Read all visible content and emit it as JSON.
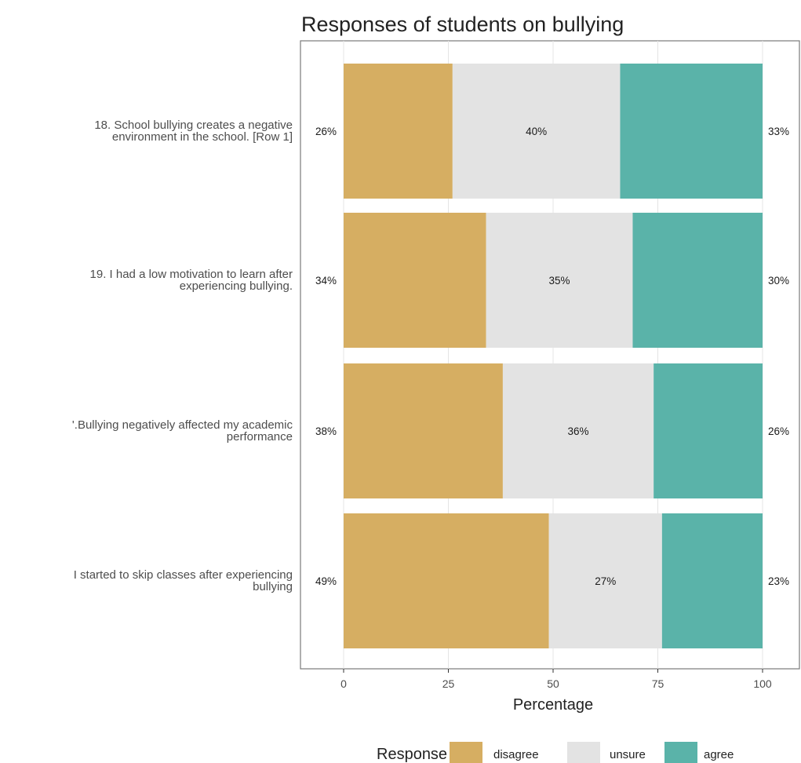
{
  "chart_data": {
    "type": "bar",
    "orientation": "horizontal",
    "stacked": true,
    "title": "Responses of students on bullying",
    "xlabel": "Percentage",
    "ylabel": "",
    "xlim": [
      0,
      100
    ],
    "xticks": [
      "0",
      "25",
      "50",
      "75",
      "100"
    ],
    "grid": true,
    "legend_position": "bottom",
    "legend_title": "Response",
    "categories": [
      [
        "18. School bullying creates a negative",
        "environment in the school. [Row 1]"
      ],
      [
        "19. I had a low motivation to learn after",
        "experiencing bullying."
      ],
      [
        "'.Bullying negatively affected my academic",
        "performance"
      ],
      [
        "I started to skip classes after experiencing",
        "bullying"
      ]
    ],
    "series": [
      {
        "name": "disagree",
        "color": "#d6ae62",
        "values": [
          26,
          34,
          38,
          49
        ]
      },
      {
        "name": "unsure",
        "color": "#e3e3e3",
        "values": [
          40,
          35,
          36,
          27
        ]
      },
      {
        "name": "agree",
        "color": "#5ab3a9",
        "values": [
          33,
          30,
          26,
          23
        ]
      }
    ],
    "labels": {
      "left": [
        "26%",
        "34%",
        "38%",
        "49%"
      ],
      "center": [
        "40%",
        "35%",
        "36%",
        "27%"
      ],
      "right": [
        "33%",
        "30%",
        "26%",
        "23%"
      ]
    }
  }
}
